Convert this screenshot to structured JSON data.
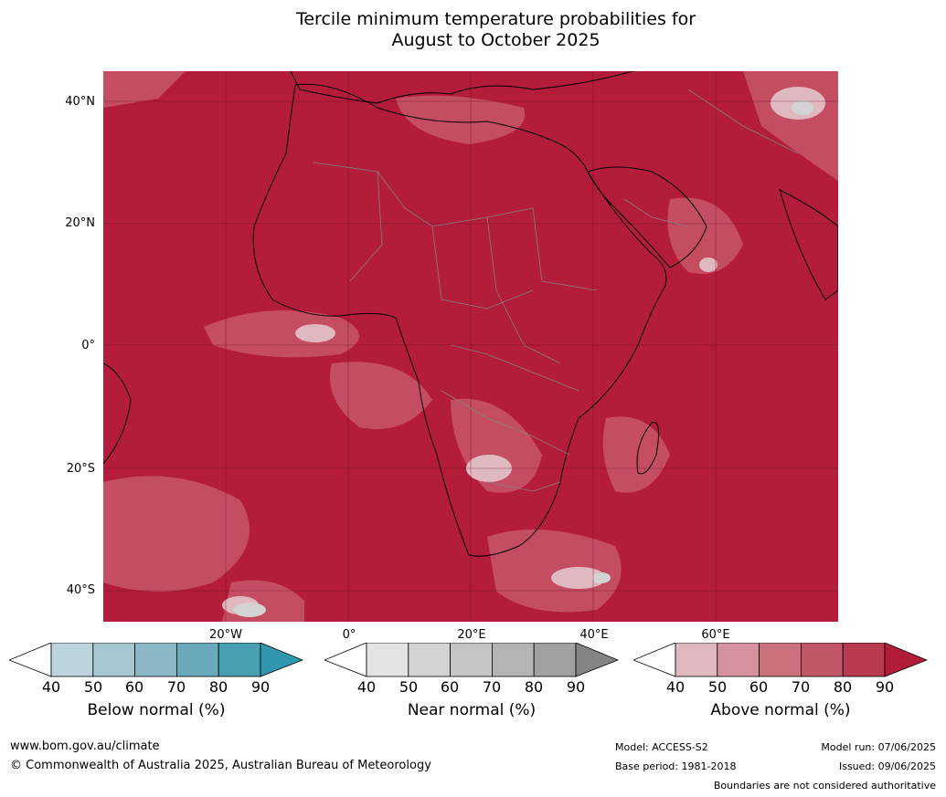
{
  "title": {
    "line1": "Tercile minimum temperature probabilities for",
    "line2": "August to October 2025"
  },
  "map": {
    "lat_labels": [
      "40°N",
      "20°N",
      "0°",
      "20°S",
      "40°S"
    ],
    "lon_labels": [
      "20°W",
      "0°",
      "20°E",
      "40°E",
      "60°E"
    ],
    "colors": {
      "above_dominant": "#b41c3b",
      "above_light": "#c8566a",
      "land_border": "#808080",
      "coastline": "#000000"
    }
  },
  "legend": {
    "below": {
      "title": "Below normal (%)",
      "ticks": [
        "40",
        "50",
        "60",
        "70",
        "80",
        "90"
      ],
      "colors": [
        "#bcd4dc",
        "#a6c7cf",
        "#89b7c3",
        "#6aa9b9",
        "#489fb2",
        "#2f98b0"
      ]
    },
    "near": {
      "title": "Near normal (%)",
      "ticks": [
        "40",
        "50",
        "60",
        "70",
        "80",
        "90"
      ],
      "colors": [
        "#e3e3e3",
        "#d3d3d3",
        "#c5c5c5",
        "#b4b4b4",
        "#a0a0a0",
        "#848484"
      ]
    },
    "above": {
      "title": "Above normal (%)",
      "ticks": [
        "40",
        "50",
        "60",
        "70",
        "80",
        "90"
      ],
      "colors": [
        "#e0b8c0",
        "#d5929d",
        "#ca717d",
        "#c15768",
        "#b83a51",
        "#b01c3a"
      ]
    }
  },
  "footer": {
    "url": "www.bom.gov.au/climate",
    "copyright": "© Commonwealth of Australia 2025, Australian Bureau of Meteorology",
    "model": "Model: ACCESS-S2",
    "base_period": "Base period: 1981-2018",
    "model_run": "Model run: 07/06/2025",
    "issued": "Issued: 09/06/2025",
    "disclaimer": "Boundaries are not considered authoritative"
  }
}
